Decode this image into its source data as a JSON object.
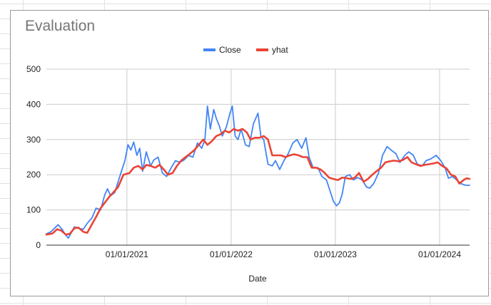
{
  "chart_data": {
    "type": "line",
    "title": "Evaluation",
    "xlabel": "Date",
    "ylabel": "",
    "ylim": [
      0,
      500
    ],
    "yticks": [
      0,
      100,
      200,
      300,
      400,
      500
    ],
    "xlim": [
      "2020-03-25",
      "2024-04-15"
    ],
    "xticks": [
      {
        "date": "2021-01-01",
        "label": "01/01/2021"
      },
      {
        "date": "2022-01-01",
        "label": "01/01/2022"
      },
      {
        "date": "2023-01-01",
        "label": "01/01/2023"
      },
      {
        "date": "2024-01-01",
        "label": "01/01/2024"
      }
    ],
    "grid": true,
    "legend": "top",
    "series": [
      {
        "name": "Close",
        "color": "#4285f4",
        "points": [
          [
            "2020-03-25",
            32
          ],
          [
            "2020-04-10",
            38
          ],
          [
            "2020-04-25",
            50
          ],
          [
            "2020-05-05",
            58
          ],
          [
            "2020-05-20",
            44
          ],
          [
            "2020-06-01",
            28
          ],
          [
            "2020-06-10",
            20
          ],
          [
            "2020-06-20",
            35
          ],
          [
            "2020-07-01",
            52
          ],
          [
            "2020-07-15",
            48
          ],
          [
            "2020-08-01",
            45
          ],
          [
            "2020-08-15",
            62
          ],
          [
            "2020-09-01",
            78
          ],
          [
            "2020-09-15",
            105
          ],
          [
            "2020-10-01",
            100
          ],
          [
            "2020-10-15",
            142
          ],
          [
            "2020-10-25",
            160
          ],
          [
            "2020-11-05",
            140
          ],
          [
            "2020-11-20",
            150
          ],
          [
            "2020-12-01",
            180
          ],
          [
            "2020-12-15",
            215
          ],
          [
            "2020-12-25",
            240
          ],
          [
            "2021-01-05",
            285
          ],
          [
            "2021-01-15",
            270
          ],
          [
            "2021-01-25",
            293
          ],
          [
            "2021-02-05",
            255
          ],
          [
            "2021-02-15",
            275
          ],
          [
            "2021-02-25",
            210
          ],
          [
            "2021-03-10",
            265
          ],
          [
            "2021-03-25",
            225
          ],
          [
            "2021-04-05",
            242
          ],
          [
            "2021-04-20",
            250
          ],
          [
            "2021-05-05",
            205
          ],
          [
            "2021-05-20",
            195
          ],
          [
            "2021-06-05",
            220
          ],
          [
            "2021-06-20",
            240
          ],
          [
            "2021-07-05",
            235
          ],
          [
            "2021-07-20",
            242
          ],
          [
            "2021-08-05",
            255
          ],
          [
            "2021-08-20",
            250
          ],
          [
            "2021-09-05",
            290
          ],
          [
            "2021-09-20",
            275
          ],
          [
            "2021-10-01",
            300
          ],
          [
            "2021-10-10",
            395
          ],
          [
            "2021-10-20",
            330
          ],
          [
            "2021-11-01",
            385
          ],
          [
            "2021-11-10",
            360
          ],
          [
            "2021-11-20",
            340
          ],
          [
            "2021-12-01",
            310
          ],
          [
            "2021-12-15",
            335
          ],
          [
            "2021-12-28",
            375
          ],
          [
            "2022-01-05",
            395
          ],
          [
            "2022-01-15",
            310
          ],
          [
            "2022-01-25",
            300
          ],
          [
            "2022-02-05",
            330
          ],
          [
            "2022-02-20",
            285
          ],
          [
            "2022-03-05",
            280
          ],
          [
            "2022-03-20",
            345
          ],
          [
            "2022-04-05",
            375
          ],
          [
            "2022-04-15",
            310
          ],
          [
            "2022-04-25",
            300
          ],
          [
            "2022-05-10",
            230
          ],
          [
            "2022-05-25",
            225
          ],
          [
            "2022-06-05",
            240
          ],
          [
            "2022-06-20",
            215
          ],
          [
            "2022-07-05",
            240
          ],
          [
            "2022-07-20",
            260
          ],
          [
            "2022-08-05",
            290
          ],
          [
            "2022-08-20",
            300
          ],
          [
            "2022-09-05",
            275
          ],
          [
            "2022-09-20",
            305
          ],
          [
            "2022-10-01",
            250
          ],
          [
            "2022-10-15",
            220
          ],
          [
            "2022-11-01",
            220
          ],
          [
            "2022-11-15",
            195
          ],
          [
            "2022-12-01",
            185
          ],
          [
            "2022-12-15",
            150
          ],
          [
            "2022-12-25",
            125
          ],
          [
            "2023-01-05",
            112
          ],
          [
            "2023-01-15",
            120
          ],
          [
            "2023-01-25",
            145
          ],
          [
            "2023-02-05",
            195
          ],
          [
            "2023-02-20",
            200
          ],
          [
            "2023-03-05",
            185
          ],
          [
            "2023-03-20",
            192
          ],
          [
            "2023-04-05",
            185
          ],
          [
            "2023-04-20",
            165
          ],
          [
            "2023-05-01",
            162
          ],
          [
            "2023-05-15",
            175
          ],
          [
            "2023-06-01",
            205
          ],
          [
            "2023-06-15",
            255
          ],
          [
            "2023-07-01",
            280
          ],
          [
            "2023-07-15",
            270
          ],
          [
            "2023-08-01",
            260
          ],
          [
            "2023-08-15",
            235
          ],
          [
            "2023-09-01",
            255
          ],
          [
            "2023-09-15",
            265
          ],
          [
            "2023-10-01",
            255
          ],
          [
            "2023-10-15",
            230
          ],
          [
            "2023-11-01",
            225
          ],
          [
            "2023-11-15",
            240
          ],
          [
            "2023-12-01",
            245
          ],
          [
            "2023-12-20",
            255
          ],
          [
            "2024-01-05",
            240
          ],
          [
            "2024-01-20",
            220
          ],
          [
            "2024-02-01",
            190
          ],
          [
            "2024-02-15",
            195
          ],
          [
            "2024-03-01",
            185
          ],
          [
            "2024-03-15",
            175
          ],
          [
            "2024-04-01",
            170
          ],
          [
            "2024-04-15",
            170
          ]
        ]
      },
      {
        "name": "yhat",
        "color": "#ea4335",
        "points": [
          [
            "2020-03-25",
            30
          ],
          [
            "2020-04-15",
            33
          ],
          [
            "2020-05-01",
            45
          ],
          [
            "2020-05-15",
            42
          ],
          [
            "2020-06-01",
            30
          ],
          [
            "2020-06-15",
            32
          ],
          [
            "2020-07-01",
            48
          ],
          [
            "2020-07-15",
            50
          ],
          [
            "2020-08-01",
            38
          ],
          [
            "2020-08-15",
            35
          ],
          [
            "2020-09-01",
            60
          ],
          [
            "2020-09-15",
            80
          ],
          [
            "2020-10-01",
            105
          ],
          [
            "2020-10-15",
            120
          ],
          [
            "2020-11-01",
            138
          ],
          [
            "2020-11-15",
            150
          ],
          [
            "2020-12-01",
            165
          ],
          [
            "2020-12-20",
            200
          ],
          [
            "2021-01-10",
            205
          ],
          [
            "2021-01-25",
            220
          ],
          [
            "2021-02-10",
            225
          ],
          [
            "2021-02-25",
            215
          ],
          [
            "2021-03-10",
            228
          ],
          [
            "2021-03-25",
            225
          ],
          [
            "2021-04-10",
            220
          ],
          [
            "2021-04-25",
            228
          ],
          [
            "2021-05-10",
            215
          ],
          [
            "2021-05-25",
            200
          ],
          [
            "2021-06-10",
            205
          ],
          [
            "2021-06-25",
            225
          ],
          [
            "2021-07-10",
            240
          ],
          [
            "2021-07-25",
            250
          ],
          [
            "2021-08-10",
            260
          ],
          [
            "2021-08-25",
            270
          ],
          [
            "2021-09-10",
            285
          ],
          [
            "2021-09-25",
            300
          ],
          [
            "2021-10-10",
            285
          ],
          [
            "2021-10-25",
            295
          ],
          [
            "2021-11-10",
            310
          ],
          [
            "2021-11-25",
            315
          ],
          [
            "2021-12-10",
            325
          ],
          [
            "2021-12-25",
            320
          ],
          [
            "2022-01-10",
            330
          ],
          [
            "2022-01-25",
            325
          ],
          [
            "2022-02-10",
            330
          ],
          [
            "2022-02-25",
            320
          ],
          [
            "2022-03-10",
            300
          ],
          [
            "2022-03-25",
            305
          ],
          [
            "2022-04-10",
            305
          ],
          [
            "2022-04-25",
            310
          ],
          [
            "2022-05-10",
            300
          ],
          [
            "2022-05-25",
            255
          ],
          [
            "2022-06-10",
            255
          ],
          [
            "2022-06-25",
            255
          ],
          [
            "2022-07-10",
            250
          ],
          [
            "2022-07-25",
            255
          ],
          [
            "2022-08-10",
            258
          ],
          [
            "2022-08-25",
            255
          ],
          [
            "2022-09-10",
            250
          ],
          [
            "2022-09-25",
            250
          ],
          [
            "2022-10-10",
            220
          ],
          [
            "2022-10-25",
            220
          ],
          [
            "2022-11-10",
            215
          ],
          [
            "2022-11-25",
            205
          ],
          [
            "2022-12-10",
            192
          ],
          [
            "2022-12-25",
            188
          ],
          [
            "2023-01-10",
            185
          ],
          [
            "2023-01-25",
            192
          ],
          [
            "2023-02-10",
            190
          ],
          [
            "2023-02-25",
            188
          ],
          [
            "2023-03-10",
            192
          ],
          [
            "2023-03-25",
            205
          ],
          [
            "2023-04-10",
            180
          ],
          [
            "2023-04-25",
            188
          ],
          [
            "2023-05-10",
            200
          ],
          [
            "2023-05-25",
            210
          ],
          [
            "2023-06-10",
            220
          ],
          [
            "2023-06-25",
            235
          ],
          [
            "2023-07-10",
            238
          ],
          [
            "2023-07-25",
            240
          ],
          [
            "2023-08-10",
            238
          ],
          [
            "2023-08-25",
            242
          ],
          [
            "2023-09-10",
            250
          ],
          [
            "2023-09-25",
            235
          ],
          [
            "2023-10-10",
            230
          ],
          [
            "2023-10-25",
            225
          ],
          [
            "2023-11-10",
            228
          ],
          [
            "2023-11-25",
            230
          ],
          [
            "2023-12-10",
            232
          ],
          [
            "2023-12-25",
            235
          ],
          [
            "2024-01-10",
            225
          ],
          [
            "2024-01-25",
            218
          ],
          [
            "2024-02-10",
            200
          ],
          [
            "2024-02-25",
            195
          ],
          [
            "2024-03-10",
            175
          ],
          [
            "2024-03-25",
            185
          ],
          [
            "2024-04-05",
            190
          ],
          [
            "2024-04-15",
            188
          ]
        ]
      }
    ]
  }
}
